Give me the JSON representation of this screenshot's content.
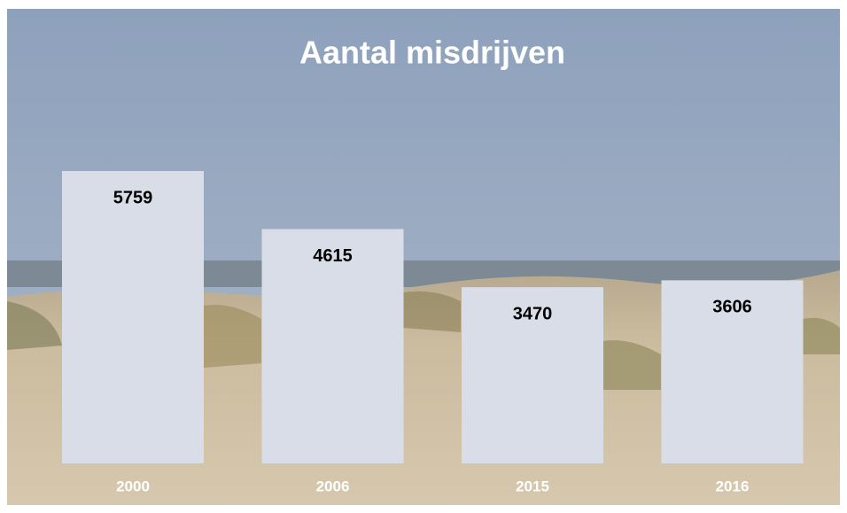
{
  "chart_data": {
    "type": "bar",
    "title": "Aantal misdrijven",
    "categories": [
      "2000",
      "2006",
      "2015",
      "2016"
    ],
    "values": [
      5759,
      4615,
      3470,
      3606
    ],
    "color": "#d8dde8"
  }
}
